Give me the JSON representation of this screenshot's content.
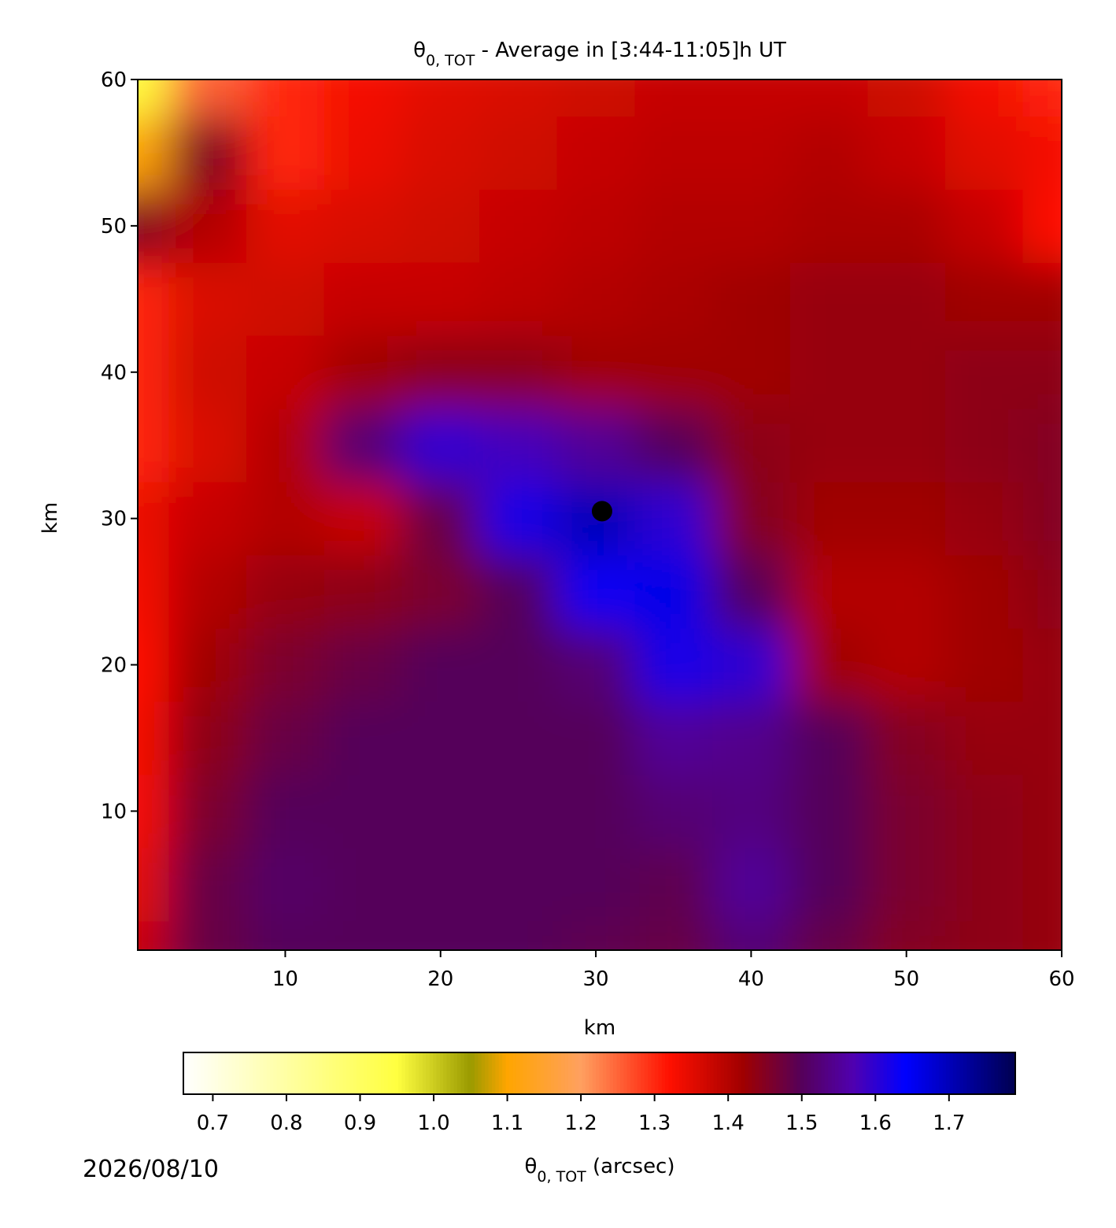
{
  "chart_data": {
    "type": "heatmap",
    "title": {
      "symbol": "θ",
      "subscript": "0, TOT",
      "text": " - Average in [3:44-11:05]h UT"
    },
    "x_label": "km",
    "y_label": "km",
    "xlim": [
      0.5,
      60
    ],
    "ylim": [
      0.5,
      60
    ],
    "xticks": [
      10,
      20,
      30,
      40,
      50,
      60
    ],
    "yticks": [
      10,
      20,
      30,
      40,
      50,
      60
    ],
    "x": [
      0,
      5,
      10,
      15,
      20,
      25,
      30,
      35,
      40,
      45,
      50,
      55,
      60
    ],
    "y": [
      0,
      5,
      10,
      15,
      20,
      25,
      30,
      35,
      40,
      45,
      50,
      55,
      60
    ],
    "z": [
      [
        1.38,
        1.48,
        1.5,
        1.5,
        1.5,
        1.5,
        1.49,
        1.48,
        1.52,
        1.48,
        1.45,
        1.44,
        1.43
      ],
      [
        1.35,
        1.48,
        1.51,
        1.5,
        1.5,
        1.5,
        1.5,
        1.49,
        1.55,
        1.5,
        1.46,
        1.44,
        1.43
      ],
      [
        1.33,
        1.46,
        1.5,
        1.5,
        1.5,
        1.5,
        1.5,
        1.52,
        1.53,
        1.5,
        1.46,
        1.44,
        1.43
      ],
      [
        1.33,
        1.44,
        1.48,
        1.5,
        1.5,
        1.5,
        1.5,
        1.55,
        1.54,
        1.5,
        1.45,
        1.43,
        1.43
      ],
      [
        1.32,
        1.42,
        1.46,
        1.48,
        1.5,
        1.5,
        1.52,
        1.62,
        1.6,
        1.42,
        1.4,
        1.42,
        1.43
      ],
      [
        1.33,
        1.4,
        1.43,
        1.44,
        1.46,
        1.5,
        1.63,
        1.66,
        1.5,
        1.4,
        1.4,
        1.42,
        1.44
      ],
      [
        1.34,
        1.38,
        1.4,
        1.38,
        1.48,
        1.62,
        1.7,
        1.6,
        1.45,
        1.42,
        1.42,
        1.43,
        1.45
      ],
      [
        1.3,
        1.36,
        1.4,
        1.52,
        1.6,
        1.58,
        1.55,
        1.5,
        1.44,
        1.43,
        1.43,
        1.44,
        1.45
      ],
      [
        1.3,
        1.37,
        1.38,
        1.42,
        1.44,
        1.44,
        1.42,
        1.42,
        1.42,
        1.43,
        1.43,
        1.44,
        1.44
      ],
      [
        1.3,
        1.36,
        1.37,
        1.38,
        1.38,
        1.39,
        1.4,
        1.41,
        1.42,
        1.43,
        1.43,
        1.42,
        1.42
      ],
      [
        1.45,
        1.4,
        1.35,
        1.36,
        1.37,
        1.38,
        1.39,
        1.4,
        1.4,
        1.41,
        1.41,
        1.38,
        1.32
      ],
      [
        1.1,
        1.45,
        1.3,
        1.34,
        1.36,
        1.37,
        1.38,
        1.39,
        1.39,
        1.4,
        1.38,
        1.35,
        1.33
      ],
      [
        0.95,
        1.25,
        1.3,
        1.33,
        1.35,
        1.36,
        1.37,
        1.38,
        1.38,
        1.38,
        1.37,
        1.33,
        1.3
      ]
    ],
    "marker": {
      "x": 30.4,
      "y": 30.5,
      "color": "#000000"
    },
    "colormap": [
      [
        0.66,
        "#ffffff"
      ],
      [
        0.95,
        "#ffff40"
      ],
      [
        1.05,
        "#9a9a00"
      ],
      [
        1.1,
        "#ffa500"
      ],
      [
        1.2,
        "#ffa060"
      ],
      [
        1.32,
        "#ff1000"
      ],
      [
        1.42,
        "#a00000"
      ],
      [
        1.5,
        "#55005a"
      ],
      [
        1.57,
        "#5000b0"
      ],
      [
        1.64,
        "#0000ff"
      ],
      [
        1.79,
        "#000050"
      ]
    ],
    "colorbar": {
      "lim": [
        0.66,
        1.79
      ],
      "ticks": [
        {
          "value": 0.7,
          "label": "0.7"
        },
        {
          "value": 0.8,
          "label": "0.8"
        },
        {
          "value": 0.9,
          "label": "0.9"
        },
        {
          "value": 1.0,
          "label": "1.0"
        },
        {
          "value": 1.1,
          "label": "1.1"
        },
        {
          "value": 1.2,
          "label": "1.2"
        },
        {
          "value": 1.3,
          "label": "1.3"
        },
        {
          "value": 1.4,
          "label": "1.4"
        },
        {
          "value": 1.5,
          "label": "1.5"
        },
        {
          "value": 1.6,
          "label": "1.6"
        },
        {
          "value": 1.7,
          "label": "1.7"
        }
      ],
      "label": {
        "symbol": "θ",
        "subscript": "0, TOT",
        "text": " (arcsec)"
      }
    },
    "date": "2026/08/10"
  }
}
